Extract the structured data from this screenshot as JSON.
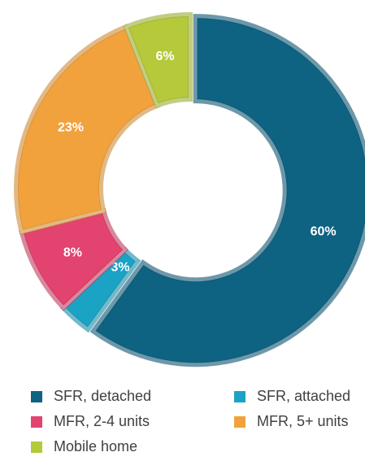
{
  "chart_data": {
    "type": "pie",
    "donut": true,
    "categories": [
      "SFR, detached",
      "SFR, attached",
      "MFR, 2-4 units",
      "MFR, 5+ units",
      "Mobile home"
    ],
    "values": [
      60,
      3,
      8,
      23,
      6
    ],
    "value_labels": [
      "60%",
      "3%",
      "8%",
      "23%",
      "6%"
    ],
    "colors": [
      "#0e6282",
      "#1aa3c4",
      "#e2436f",
      "#f2a23c",
      "#b5c93a"
    ]
  }
}
